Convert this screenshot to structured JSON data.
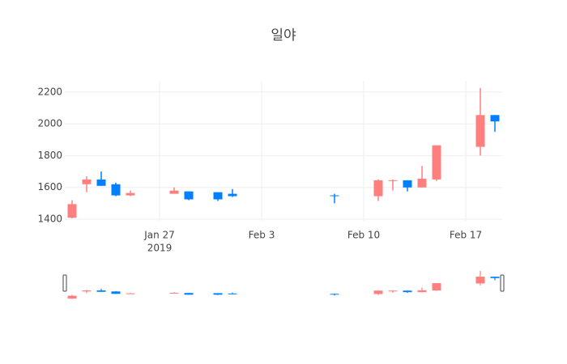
{
  "chart_data": {
    "type": "candlestick",
    "title": "일야",
    "x": [
      "2019-01-21",
      "2019-01-22",
      "2019-01-23",
      "2019-01-24",
      "2019-01-25",
      "2019-01-28",
      "2019-01-29",
      "2019-01-31",
      "2019-02-01",
      "2019-02-08",
      "2019-02-11",
      "2019-02-12",
      "2019-02-13",
      "2019-02-14",
      "2019-02-15",
      "2019-02-18",
      "2019-02-19"
    ],
    "open": [
      1410,
      1620,
      1650,
      1620,
      1550,
      1560,
      1575,
      1570,
      1560,
      1550,
      1545,
      1640,
      1645,
      1600,
      1650,
      1855,
      2055
    ],
    "high": [
      1520,
      1670,
      1700,
      1630,
      1580,
      1600,
      1575,
      1570,
      1590,
      1560,
      1650,
      1650,
      1645,
      1735,
      1865,
      2225,
      2055
    ],
    "low": [
      1405,
      1570,
      1610,
      1545,
      1545,
      1560,
      1520,
      1515,
      1540,
      1500,
      1515,
      1580,
      1575,
      1600,
      1640,
      1800,
      1950
    ],
    "close": [
      1495,
      1650,
      1610,
      1550,
      1565,
      1580,
      1525,
      1525,
      1545,
      1545,
      1645,
      1645,
      1600,
      1655,
      1865,
      2055,
      2015
    ],
    "increasing_color": "#ff7f7f",
    "decreasing_color": "#007fff",
    "xlim": [
      "2019-01-20T12:00:00Z",
      "2019-02-19T12:00:00Z"
    ],
    "xticks": [
      {
        "value": "2019-01-27",
        "label": "Jan 27"
      },
      {
        "value": "2019-02-03",
        "label": "Feb 3"
      },
      {
        "value": "2019-02-10",
        "label": "Feb 10"
      },
      {
        "value": "2019-02-17",
        "label": "Feb 17"
      }
    ],
    "xtick_year": "2019",
    "ylim": [
      1390,
      2270
    ],
    "yticks": [
      1400,
      1600,
      1800,
      2000,
      2200
    ],
    "grid": true,
    "rangeslider": true
  }
}
